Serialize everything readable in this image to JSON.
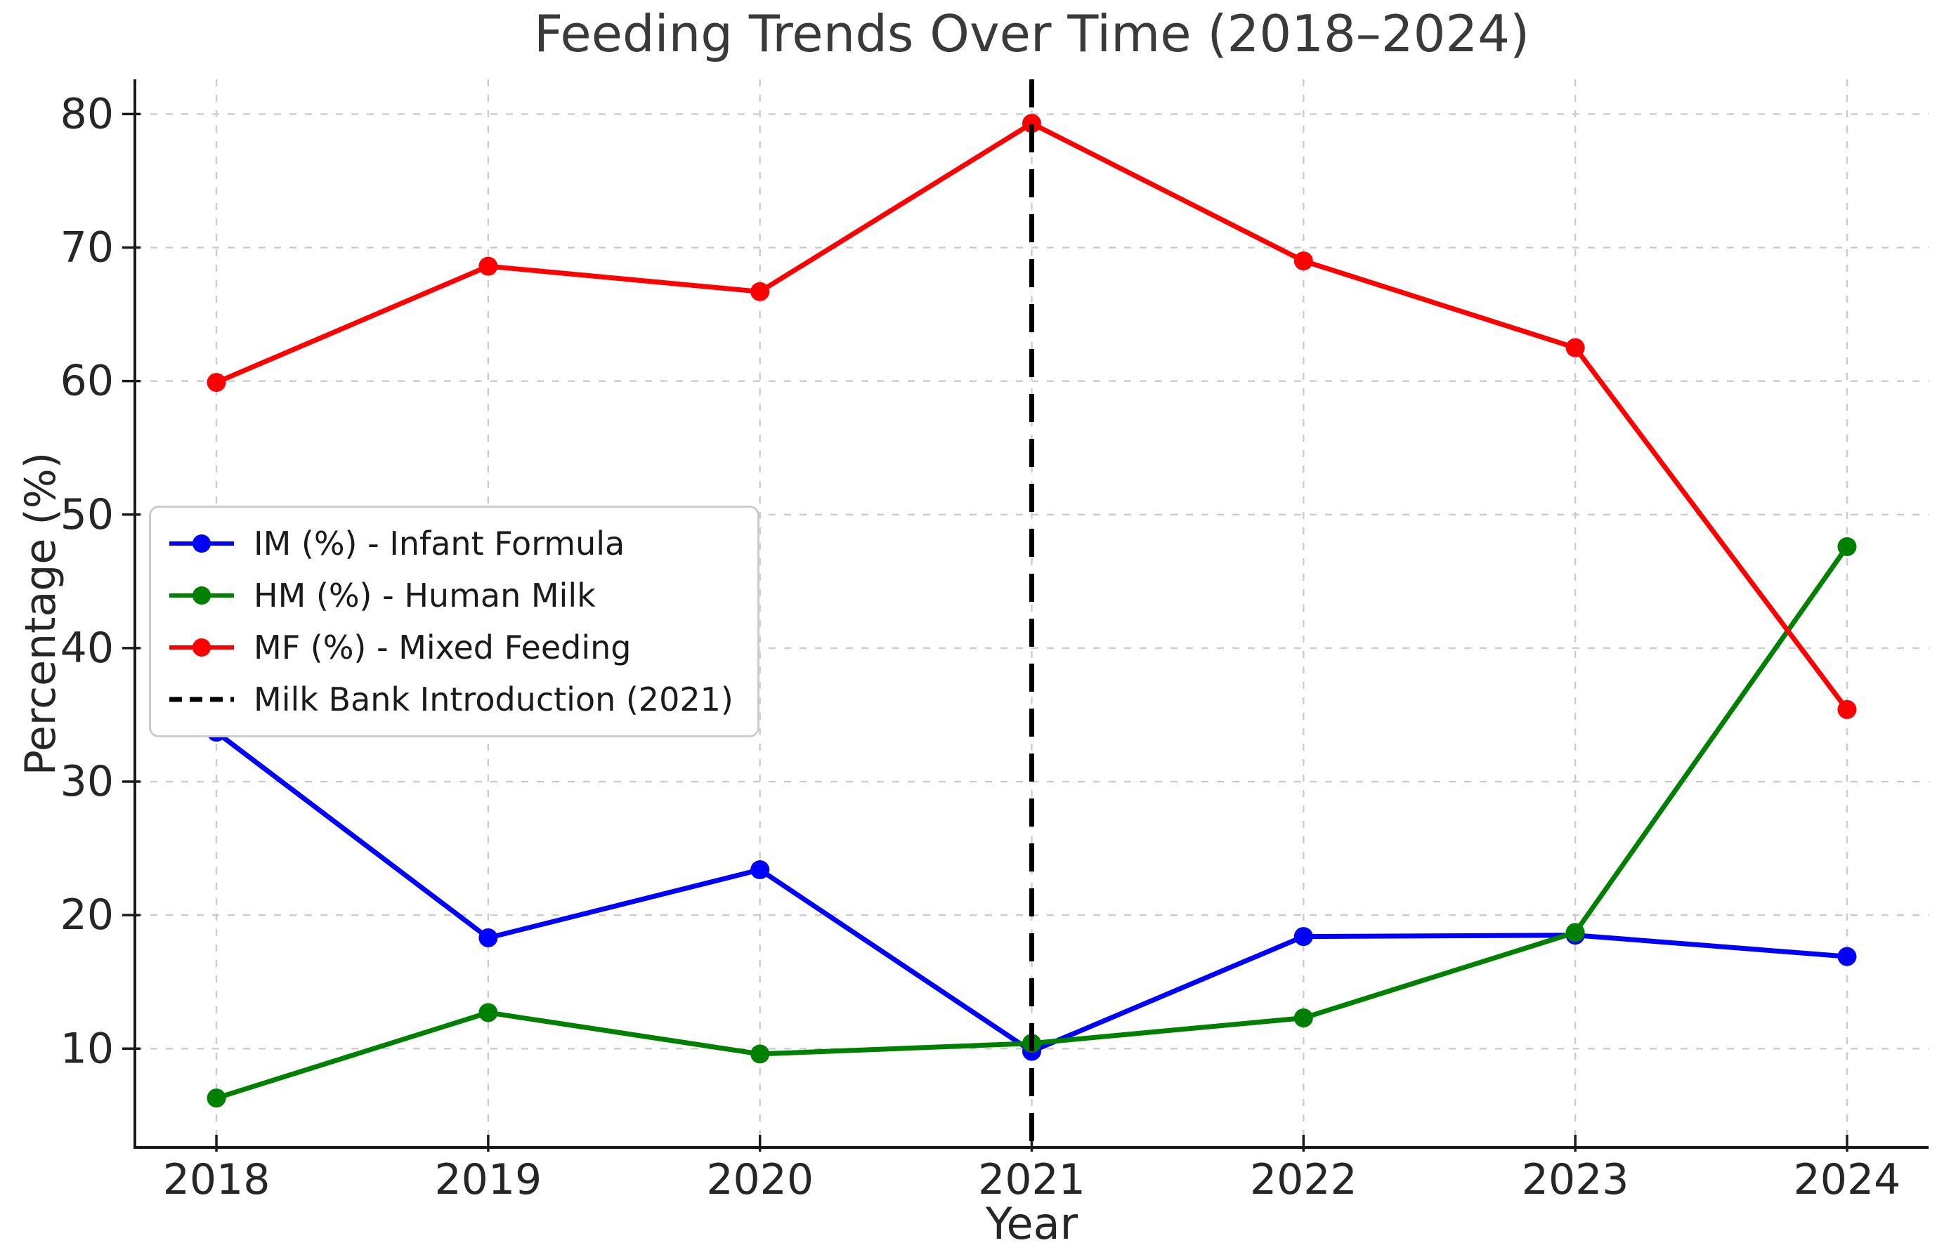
{
  "chart_data": {
    "type": "line",
    "title": "Feeding Trends Over Time (2018–2024)",
    "xlabel": "Year",
    "ylabel": "Percentage (%)",
    "x": [
      2018,
      2019,
      2020,
      2021,
      2022,
      2023,
      2024
    ],
    "series": [
      {
        "name": "IM (%) - Infant Formula",
        "color": "#0000ff",
        "values": [
          33.7,
          18.3,
          23.4,
          9.8,
          18.4,
          18.5,
          16.9
        ]
      },
      {
        "name": "HM (%) - Human Milk",
        "color": "#008000",
        "values": [
          6.3,
          12.7,
          9.6,
          10.4,
          12.3,
          18.7,
          47.6
        ]
      },
      {
        "name": "MF (%) - Mixed Feeding",
        "color": "#ff0000",
        "values": [
          59.9,
          68.6,
          66.7,
          79.3,
          69.0,
          62.5,
          35.4
        ]
      }
    ],
    "event_line": {
      "label": "Milk Bank Introduction (2021)",
      "x": 2021,
      "color": "#000000",
      "style": "dashed"
    },
    "xticks": [
      2018,
      2019,
      2020,
      2021,
      2022,
      2023,
      2024
    ],
    "yticks": [
      10,
      20,
      30,
      40,
      50,
      60,
      70,
      80
    ],
    "xlim": [
      2017.7,
      2024.3
    ],
    "ylim": [
      2.6,
      82.6
    ],
    "grid": true,
    "grid_color": "#cccccc",
    "axis_color": "#1a1a1a",
    "tick_label_color": "#262626",
    "legend_position": "upper left"
  }
}
